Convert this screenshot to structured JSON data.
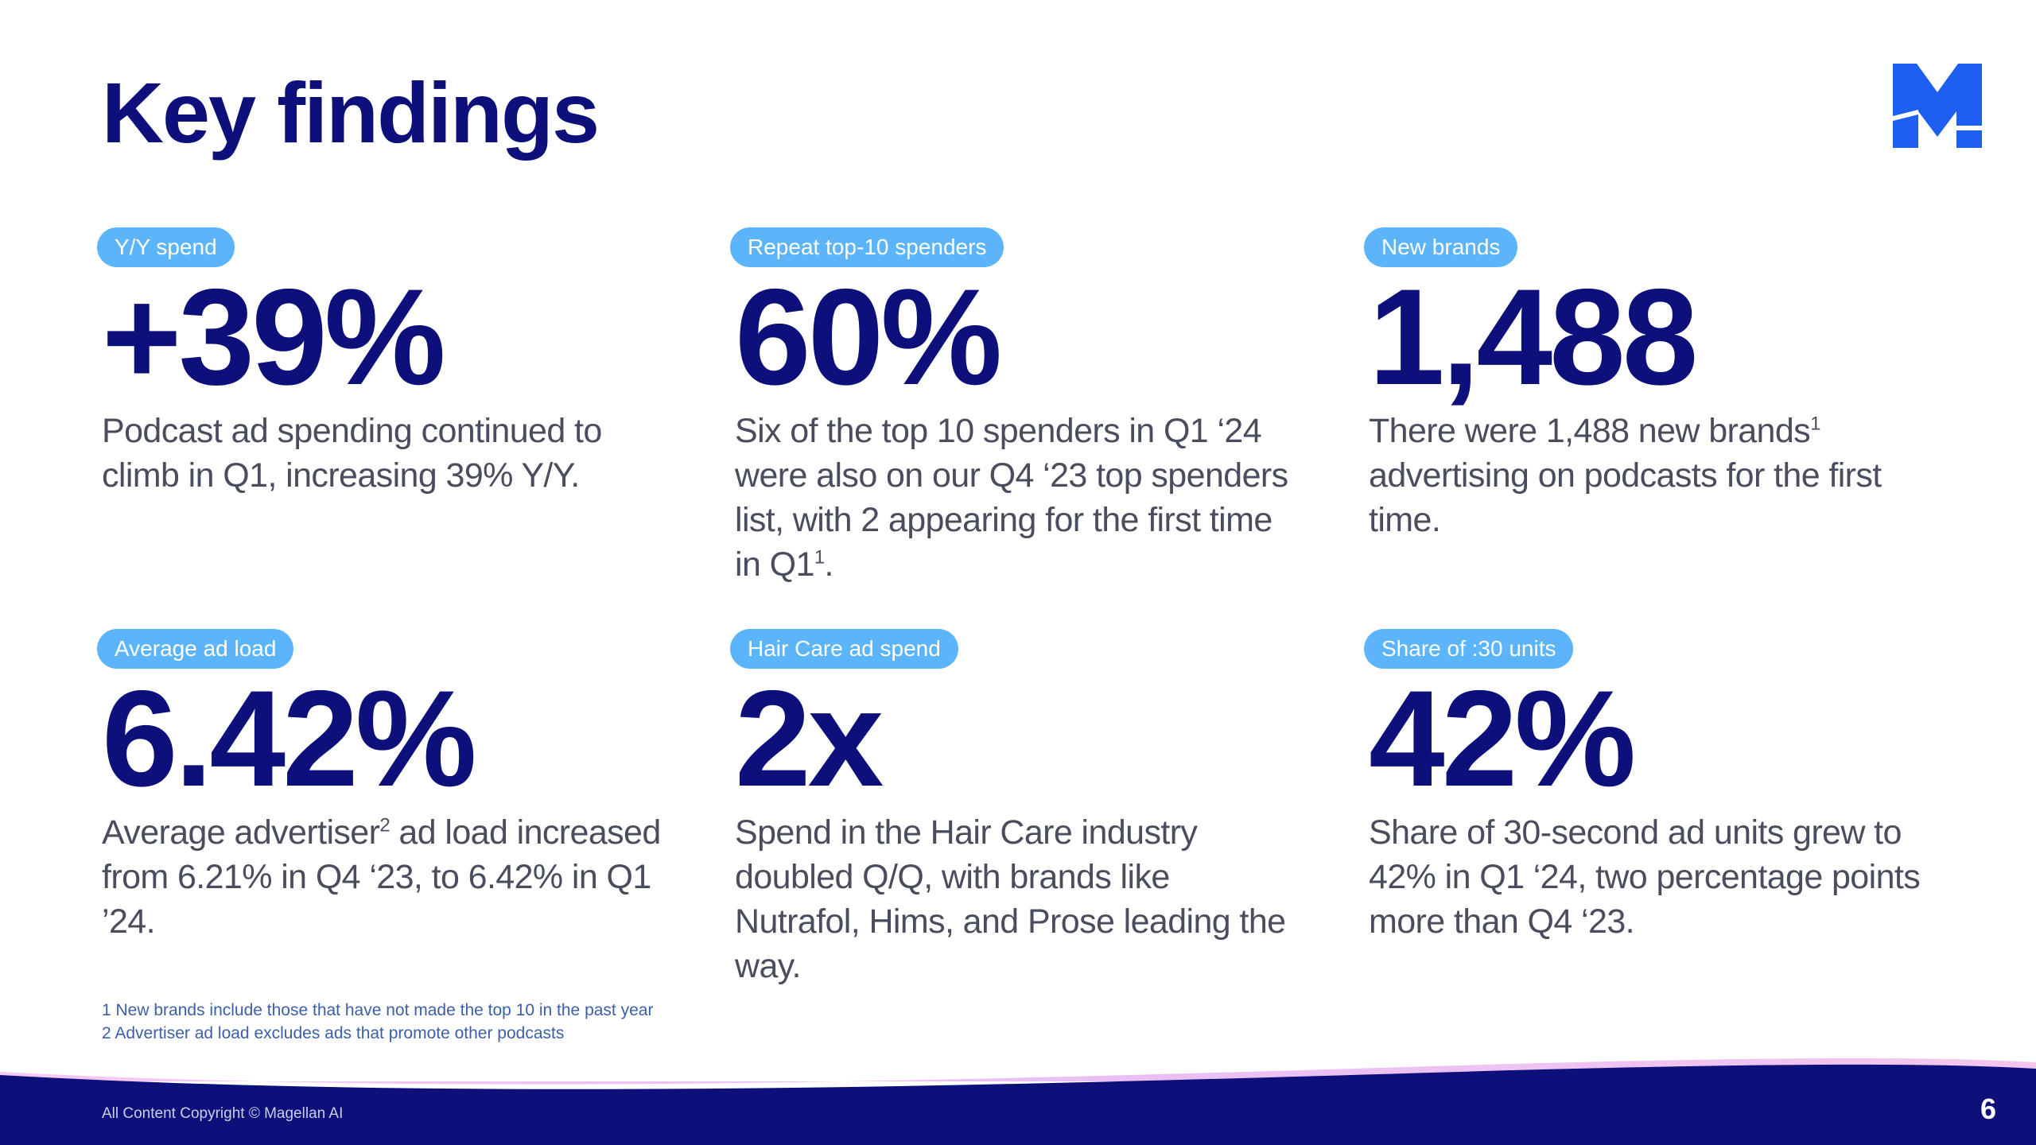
{
  "title": "Key findings",
  "logo_letter": "M",
  "brand_colors": {
    "navy": "#0d0f7a",
    "pill_blue": "#5cb4fa",
    "logo_blue": "#1e5ef0"
  },
  "findings": [
    {
      "label": "Y/Y spend",
      "value": "+39%",
      "desc": "Podcast ad spending continued to climb in Q1, increasing 39% Y/Y."
    },
    {
      "label": "Repeat top-10 spenders",
      "value": "60%",
      "desc_pre": "Six of the top 10 spenders in Q1 ‘24 were also on our Q4 ‘23 top spenders list, with 2 appearing for the first time in Q1",
      "desc_sup": "1",
      "desc_post": "."
    },
    {
      "label": "New brands",
      "value": "1,488",
      "desc_pre": "There were 1,488 new brands",
      "desc_sup": "1",
      "desc_post": " advertising on podcasts for the first time."
    },
    {
      "label": "Average ad load",
      "value": "6.42%",
      "desc_pre": "Average advertiser",
      "desc_sup": "2",
      "desc_post": " ad load increased from 6.21% in Q4 ‘23, to 6.42% in Q1 ’24."
    },
    {
      "label": "Hair Care ad spend",
      "value": "2x",
      "desc": "Spend in the Hair Care industry doubled Q/Q, with brands like Nutrafol, Hims, and Prose leading the way."
    },
    {
      "label": "Share of :30 units",
      "value": "42%",
      "desc": "Share of 30-second ad units grew to 42% in Q1 ‘24, two percentage points more than Q4 ‘23."
    }
  ],
  "footnotes": [
    "1 New brands include those that have not made the top 10 in the past year",
    "2 Advertiser ad load excludes ads that promote other podcasts"
  ],
  "copyright": "All Content Copyright © Magellan AI",
  "page_number": "6"
}
